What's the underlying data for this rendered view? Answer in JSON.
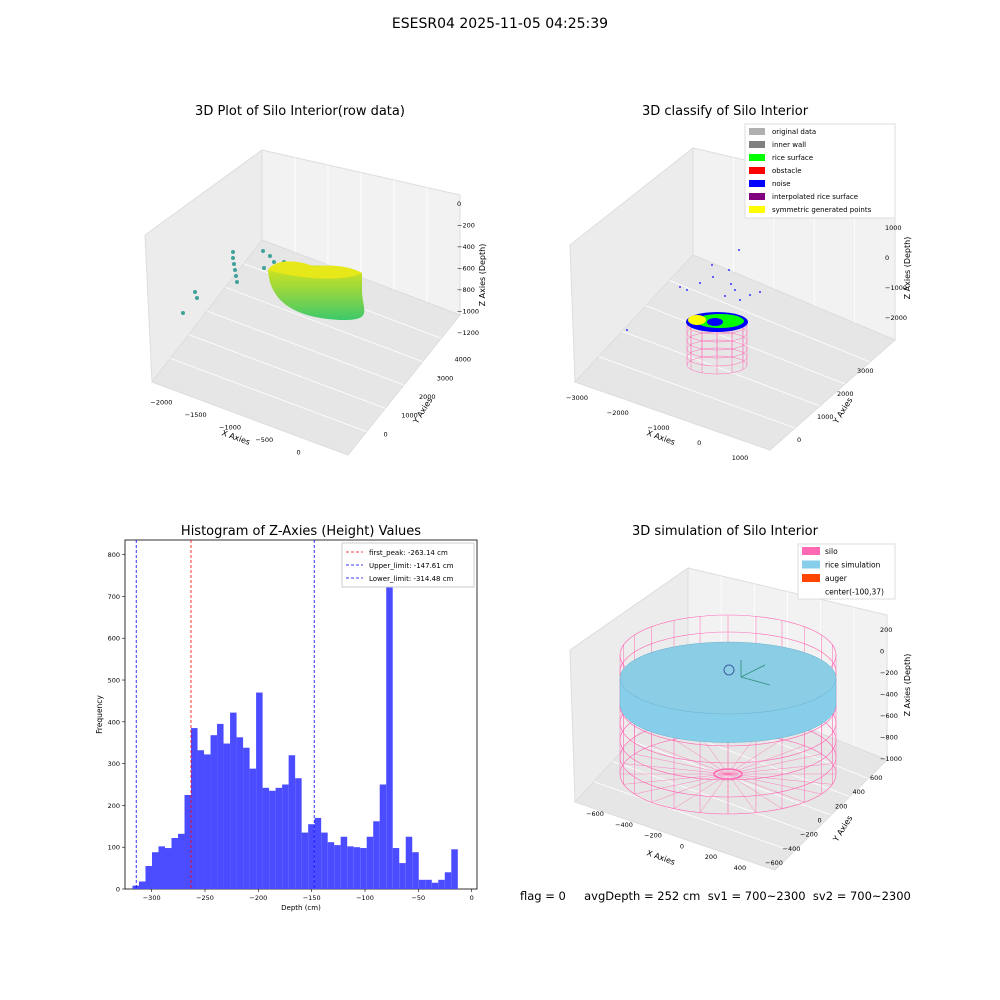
{
  "figure": {
    "suptitle": "ESESR04 2025-11-05 04:25:39",
    "footer": "flag = 0     avgDepth = 252 cm  sv1 = 700~2300  sv2 = 700~2300"
  },
  "colors": {
    "grid_pane": "#f2f2f2",
    "hist_bar": "#4b4bff",
    "first_peak_line": "#ff0000",
    "limit_line": "#0000ff",
    "original": "#b0b0b0",
    "inner_wall": "#808080",
    "rice_surface": "#00ff00",
    "obstacle": "#ff0000",
    "noise": "#0000ff",
    "interp": "#800080",
    "symmetric": "#ffff00",
    "silo": "#ff69b4",
    "rice_sim": "#87ceeb",
    "auger": "#ff4500"
  },
  "panel1": {
    "title": "3D Plot of Silo Interior(row data)",
    "xlabel": "X Axies",
    "ylabel": "Y Axies",
    "zlabel": "Z Axies (Depth)",
    "xticks": [
      "−2000",
      "−1500",
      "−1000",
      "−500",
      "0",
      "500"
    ],
    "yticks": [
      "0",
      "1000",
      "2000",
      "3000",
      "4000"
    ],
    "zticks": [
      "0",
      "−200",
      "−400",
      "−600",
      "−800",
      "−1000",
      "−1200"
    ]
  },
  "panel2": {
    "title": "3D classify of Silo Interior",
    "xlabel": "X Axies",
    "ylabel": "Y Axies",
    "zlabel": "Z Axies (Depth)",
    "xticks": [
      "−3000",
      "−2000",
      "−1000",
      "0",
      "1000"
    ],
    "yticks": [
      "0",
      "1000",
      "2000",
      "3000"
    ],
    "zticks": [
      "1000",
      "0",
      "−1000",
      "−2000"
    ],
    "legend": [
      "original data",
      "inner wall",
      "rice surface",
      "obstacle",
      "noise",
      "interpolated rice surface",
      "symmetric generated points"
    ]
  },
  "panel4": {
    "title": "3D simulation of Silo Interior",
    "xlabel": "X Axies",
    "ylabel": "Y Axies",
    "zlabel": "Z Axies (Depth)",
    "xticks": [
      "−600",
      "−400",
      "−200",
      "0",
      "200",
      "400"
    ],
    "yticks": [
      "600",
      "400",
      "200",
      "0",
      "−200",
      "−400",
      "−600"
    ],
    "zticks": [
      "200",
      "0",
      "−200",
      "−400",
      "−600",
      "−800",
      "−1000"
    ],
    "legend": [
      "silo",
      "rice simulation",
      "auger",
      "center(-100,37)"
    ]
  },
  "chart_data": [
    {
      "type": "bar",
      "title": "Histogram of Z-Axies (Height) Values",
      "xlabel": "Depth (cm)",
      "ylabel": "Frequency",
      "xlim": [
        -325,
        5
      ],
      "ylim": [
        0,
        835
      ],
      "xticks": [
        -300,
        -250,
        -200,
        -150,
        -100,
        -50,
        0
      ],
      "yticks": [
        0,
        100,
        200,
        300,
        400,
        500,
        600,
        700,
        800
      ],
      "bin_start": -318,
      "bin_width": 6.1,
      "values": [
        8,
        18,
        55,
        88,
        102,
        98,
        122,
        132,
        225,
        385,
        332,
        322,
        368,
        395,
        348,
        422,
        363,
        338,
        288,
        470,
        242,
        235,
        242,
        250,
        320,
        265,
        135,
        155,
        170,
        135,
        112,
        105,
        125,
        102,
        100,
        98,
        125,
        162,
        250,
        780,
        98,
        62,
        125,
        88,
        22,
        22,
        15,
        22,
        40,
        95
      ],
      "vlines": [
        {
          "label": "first_peak: -263.14 cm",
          "x": -263.14,
          "color": "red"
        },
        {
          "label": "Upper_limit: -147.61 cm",
          "x": -147.61,
          "color": "blue"
        },
        {
          "label": "Lower_limit: -314.48 cm",
          "x": -314.48,
          "color": "blue"
        }
      ]
    }
  ]
}
